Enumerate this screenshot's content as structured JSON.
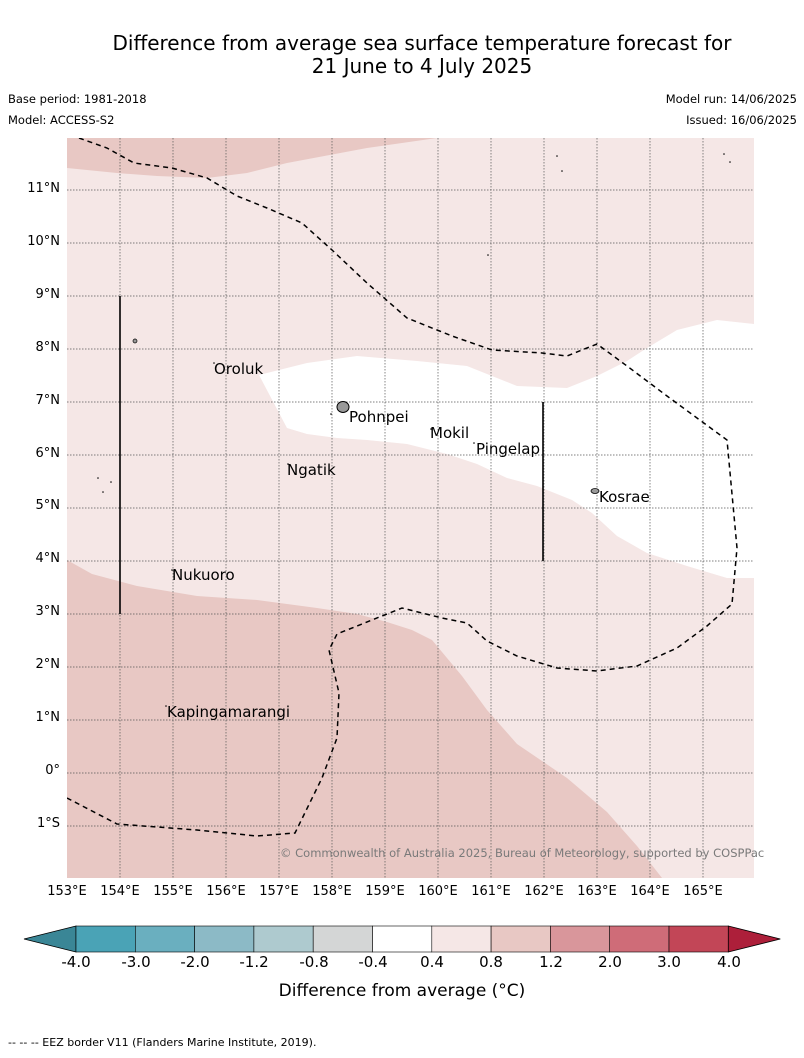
{
  "title_line1": "Difference from average sea surface temperature forecast for",
  "title_line2": "21 June to 4 July 2025",
  "base_period": "Base period: 1981-2018",
  "model": "Model: ACCESS-S2",
  "model_run": "Model run: 14/06/2025",
  "issued": "Issued: 16/06/2025",
  "latitude_labels": [
    "11°N",
    "10°N",
    "9°N",
    "8°N",
    "7°N",
    "6°N",
    "5°N",
    "4°N",
    "3°N",
    "2°N",
    "1°N",
    "0°",
    "1°S"
  ],
  "longitude_labels": [
    "153°E",
    "154°E",
    "155°E",
    "156°E",
    "157°E",
    "158°E",
    "159°E",
    "160°E",
    "161°E",
    "162°E",
    "163°E",
    "164°E",
    "165°E"
  ],
  "places": {
    "oroluk": "Oroluk",
    "pohnpei": "Pohnpei",
    "mokil": "Mokil",
    "pingelap": "Pingelap",
    "ngatik": "Ngatik",
    "kosrae": "Kosrae",
    "nukuoro": "Nukuoro",
    "kapingamarangi": "Kapingamarangi"
  },
  "copyright": "© Commonwealth of Australia 2025, Bureau of Meteorology, supported by COSPPac",
  "colorbar": {
    "ticks": [
      "-4.0",
      "-3.0",
      "-2.0",
      "-1.2",
      "-0.8",
      "-0.4",
      "0.4",
      "0.8",
      "1.2",
      "2.0",
      "3.0",
      "4.0"
    ],
    "colors": [
      "#4aa3b6",
      "#6aafbf",
      "#8cbac6",
      "#aecacf",
      "#d4d6d6",
      "#ffffff",
      "#f5e7e6",
      "#e8c8c4",
      "#d9969b",
      "#cf6c78",
      "#c24657"
    ],
    "under_color": "#3a8696",
    "over_color": "#ad1f3a",
    "label": "Difference from average (°C)"
  },
  "footnote": "-- -- -- EEZ border V11 (Flanders Marine Institute, 2019).",
  "region_colors": {
    "band_0p4_0p8": "#f5e7e6",
    "band_0p8_1p2": "#e8c8c4",
    "band_neutral": "#ffffff"
  }
}
